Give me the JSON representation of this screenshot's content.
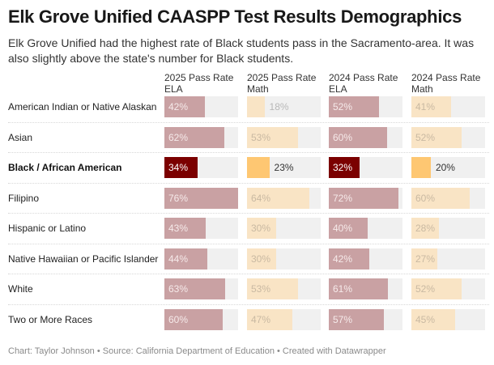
{
  "title": "Elk Grove Unified CAASPP Test Results Demographics",
  "description": "Elk Grove Unified had the highest rate of Black students pass in the Sacramento-area. It was also slightly above the state's number for Black students.",
  "footer": "Chart: Taylor Johnson • Source: California Department of Education • Created with Datawrapper",
  "colors": {
    "ela_highlight": "#7b0000",
    "math_highlight": "#fec772",
    "ela_muted": "#c9a1a3",
    "math_muted": "#f9e4c5",
    "track": "#f0f0f0"
  },
  "chart_data": {
    "type": "bar",
    "title": "Elk Grove Unified CAASPP Test Results Demographics",
    "subtitle": "Elk Grove Unified had the highest rate of Black students pass in the Sacramento-area. It was also slightly above the state's number for Black students.",
    "xlabel": "",
    "ylabel": "",
    "unit": "%",
    "xlim": [
      0,
      76
    ],
    "highlighted_category": "Black / African American",
    "categories": [
      "American Indian or Native Alaskan",
      "Asian",
      "Black / African American",
      "Filipino",
      "Hispanic or Latino",
      "Native Hawaiian or Pacific Islander",
      "White",
      "Two or More Races"
    ],
    "series": [
      {
        "name": "2025 Pass Rate ELA",
        "kind": "ela",
        "values": [
          42,
          62,
          34,
          76,
          43,
          44,
          63,
          60
        ]
      },
      {
        "name": "2025 Pass Rate Math",
        "kind": "math",
        "values": [
          18,
          53,
          23,
          64,
          30,
          30,
          53,
          47
        ]
      },
      {
        "name": "2024 Pass Rate ELA",
        "kind": "ela",
        "values": [
          52,
          60,
          32,
          72,
          40,
          42,
          61,
          57
        ]
      },
      {
        "name": "2024 Pass Rate Math",
        "kind": "math",
        "values": [
          41,
          52,
          20,
          60,
          28,
          27,
          52,
          45
        ]
      }
    ]
  }
}
